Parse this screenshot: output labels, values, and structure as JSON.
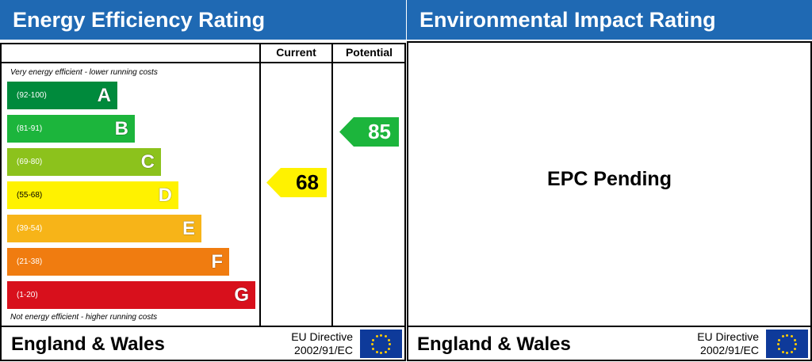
{
  "energy": {
    "title": "Energy Efficiency Rating",
    "col_current": "Current",
    "col_potential": "Potential",
    "top_note": "Very energy efficient - lower running costs",
    "bottom_note": "Not energy efficient - higher running costs",
    "bands": [
      {
        "range": "(92-100)",
        "letter": "A",
        "color": "#008a3c"
      },
      {
        "range": "(81-91)",
        "letter": "B",
        "color": "#1cb53c"
      },
      {
        "range": "(69-80)",
        "letter": "C",
        "color": "#8cc21c"
      },
      {
        "range": "(55-68)",
        "letter": "D",
        "color": "#fff200"
      },
      {
        "range": "(39-54)",
        "letter": "E",
        "color": "#f7b418"
      },
      {
        "range": "(21-38)",
        "letter": "F",
        "color": "#f07c10"
      },
      {
        "range": "(1-20)",
        "letter": "G",
        "color": "#d8101c"
      }
    ],
    "current": {
      "value": "68",
      "color": "#fff200"
    },
    "potential": {
      "value": "85",
      "color": "#1cb53c"
    },
    "footer": {
      "region": "England & Wales",
      "directive_line1": "EU Directive",
      "directive_line2": "2002/91/EC"
    }
  },
  "environmental": {
    "title": "Environmental Impact Rating",
    "status": "EPC Pending",
    "footer": {
      "region": "England & Wales",
      "directive_line1": "EU Directive",
      "directive_line2": "2002/91/EC"
    }
  }
}
